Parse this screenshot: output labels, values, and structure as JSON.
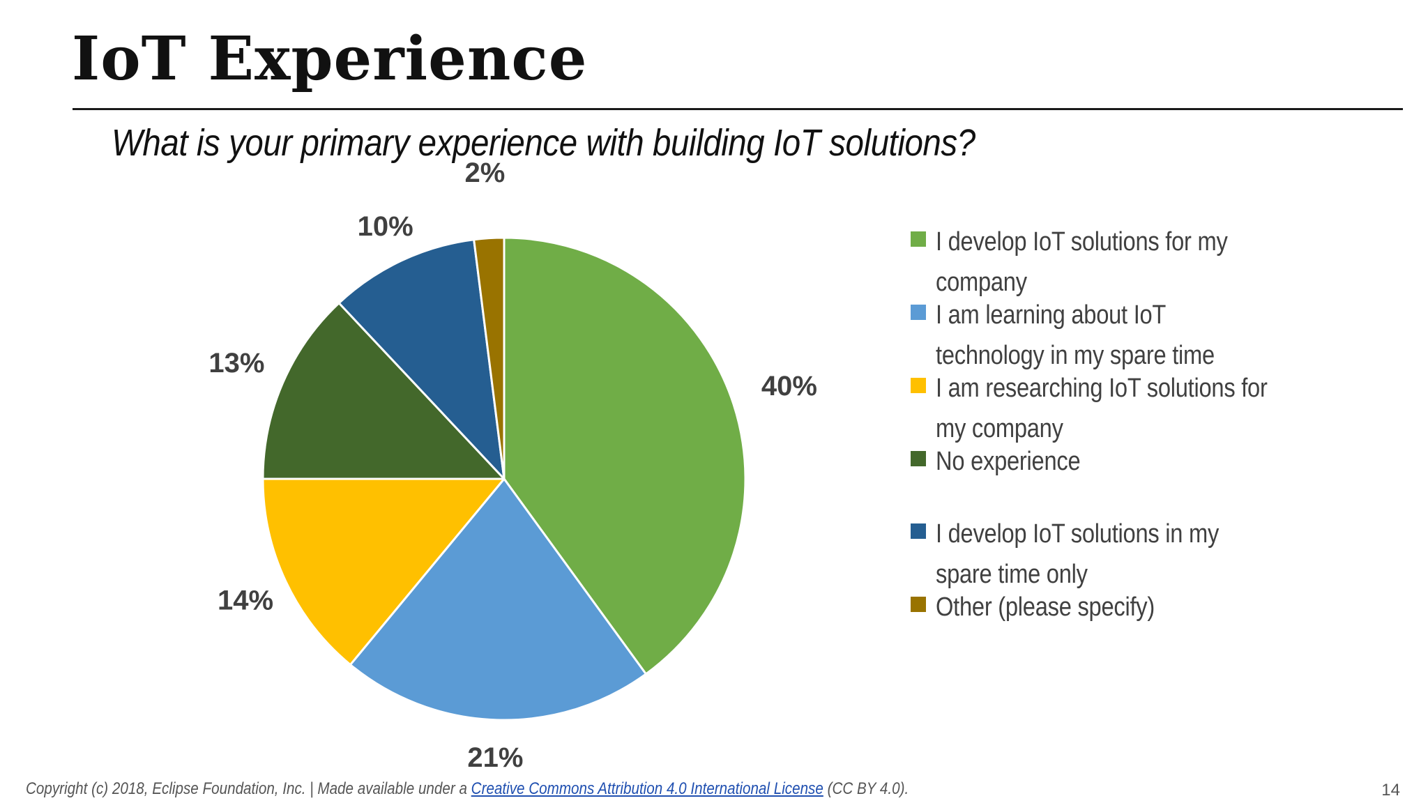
{
  "slide": {
    "title": "IoT Experience",
    "question": "What is your primary experience with building IoT solutions?",
    "page_number": "14"
  },
  "footer": {
    "prefix": "Copyright (c) 2018, Eclipse Foundation, Inc. | Made available under a ",
    "link_text": "Creative Commons Attribution 4.0 International License",
    "suffix": " (CC BY 4.0)."
  },
  "chart_data": {
    "type": "pie",
    "title": "",
    "start_angle_deg": 0,
    "direction": "clockwise",
    "slice_border_color": "#ffffff",
    "legend_position": "right",
    "slices": [
      {
        "label": "I develop IoT solutions for my company",
        "value": 40,
        "display": "40%",
        "color": "#70AD47"
      },
      {
        "label": "I am learning about IoT technology in my spare time",
        "value": 21,
        "display": "21%",
        "color": "#5B9BD5"
      },
      {
        "label": "I am researching IoT solutions for my company",
        "value": 14,
        "display": "14%",
        "color": "#FFC000"
      },
      {
        "label": "No experience",
        "value": 13,
        "display": "13%",
        "color": "#43682B"
      },
      {
        "label": "I develop IoT solutions in my spare time only",
        "value": 10,
        "display": "10%",
        "color": "#255E91"
      },
      {
        "label": "Other (please specify)",
        "value": 2,
        "display": "2%",
        "color": "#997300"
      }
    ]
  }
}
